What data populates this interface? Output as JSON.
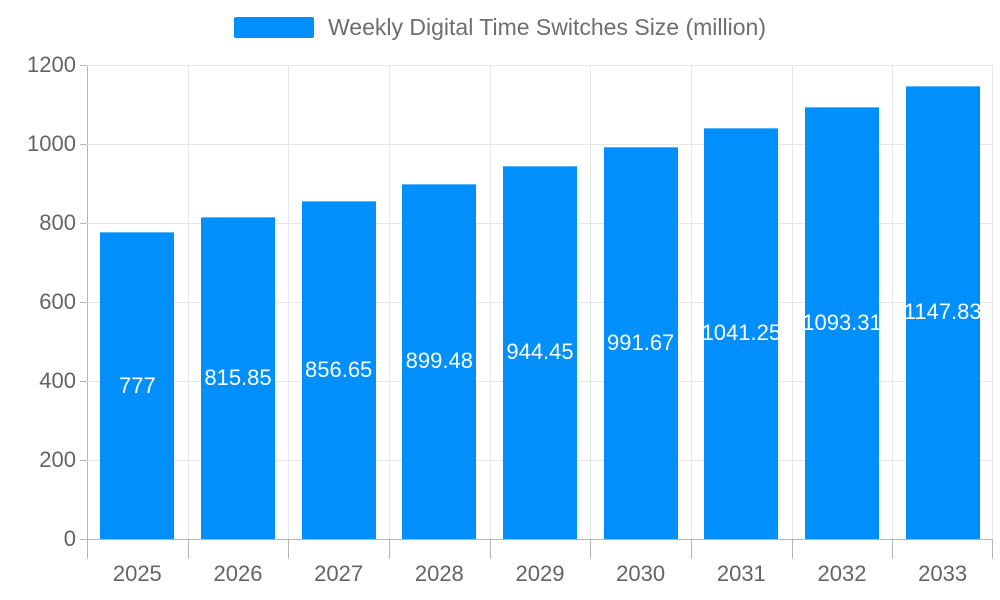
{
  "chart_data": {
    "type": "bar",
    "title": "Weekly Digital Time Switches Size (million)",
    "categories": [
      "2025",
      "2026",
      "2027",
      "2028",
      "2029",
      "2030",
      "2031",
      "2032",
      "2033"
    ],
    "series": [
      {
        "name": "Weekly Digital Time Switches Size (million)",
        "values": [
          777,
          815.85,
          856.65,
          899.48,
          944.45,
          991.67,
          1041.25,
          1093.31,
          1147.83
        ],
        "value_labels": [
          "777",
          "815.85",
          "856.65",
          "899.48",
          "944.45",
          "991.67",
          "1041.25",
          "1093.31",
          "1147.83"
        ]
      }
    ],
    "xlabel": "",
    "ylabel": "",
    "ylim": [
      0,
      1200
    ],
    "yticks": [
      0,
      200,
      400,
      600,
      800,
      1000,
      1200
    ],
    "grid": true,
    "legend_position": "top",
    "colors": {
      "bar": "#008FFB",
      "grid": "#e7e7e7",
      "axis": "#b6b6b6",
      "tick_text": "#646464",
      "legend_text": "#6e6e6e",
      "data_label": "#ffffff"
    }
  }
}
